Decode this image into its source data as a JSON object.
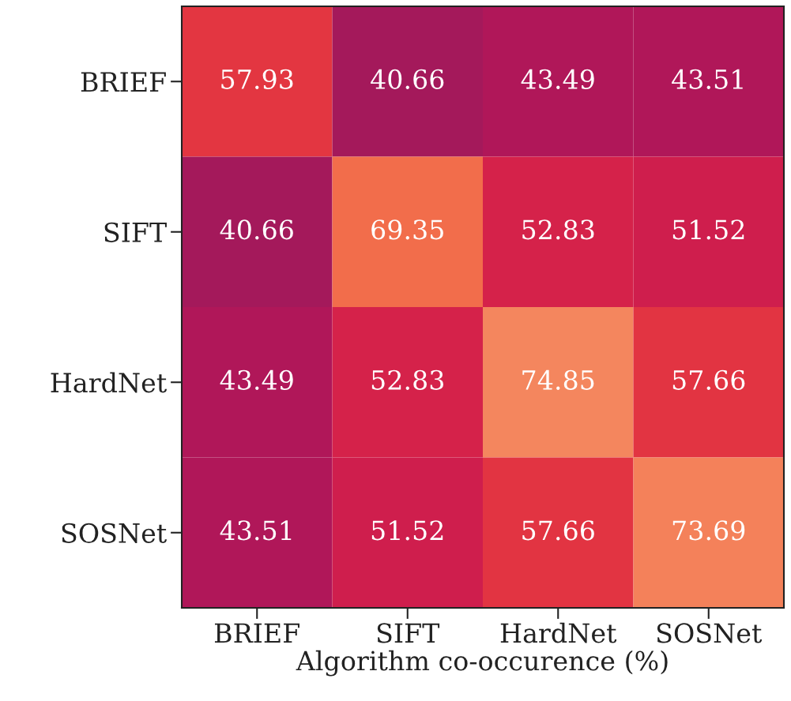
{
  "chart_data": {
    "type": "heatmap",
    "xlabel": "Algorithm co-occurence (%)",
    "categories": [
      "BRIEF",
      "SIFT",
      "HardNet",
      "SOSNet"
    ],
    "y_categories": [
      "BRIEF",
      "SIFT",
      "HardNet",
      "SOSNet"
    ],
    "cells": [
      [
        57.93,
        40.66,
        43.49,
        43.51
      ],
      [
        40.66,
        69.35,
        52.83,
        51.52
      ],
      [
        43.49,
        52.83,
        74.85,
        57.66
      ],
      [
        43.51,
        51.52,
        57.66,
        73.69
      ]
    ],
    "data_labels": true
  }
}
